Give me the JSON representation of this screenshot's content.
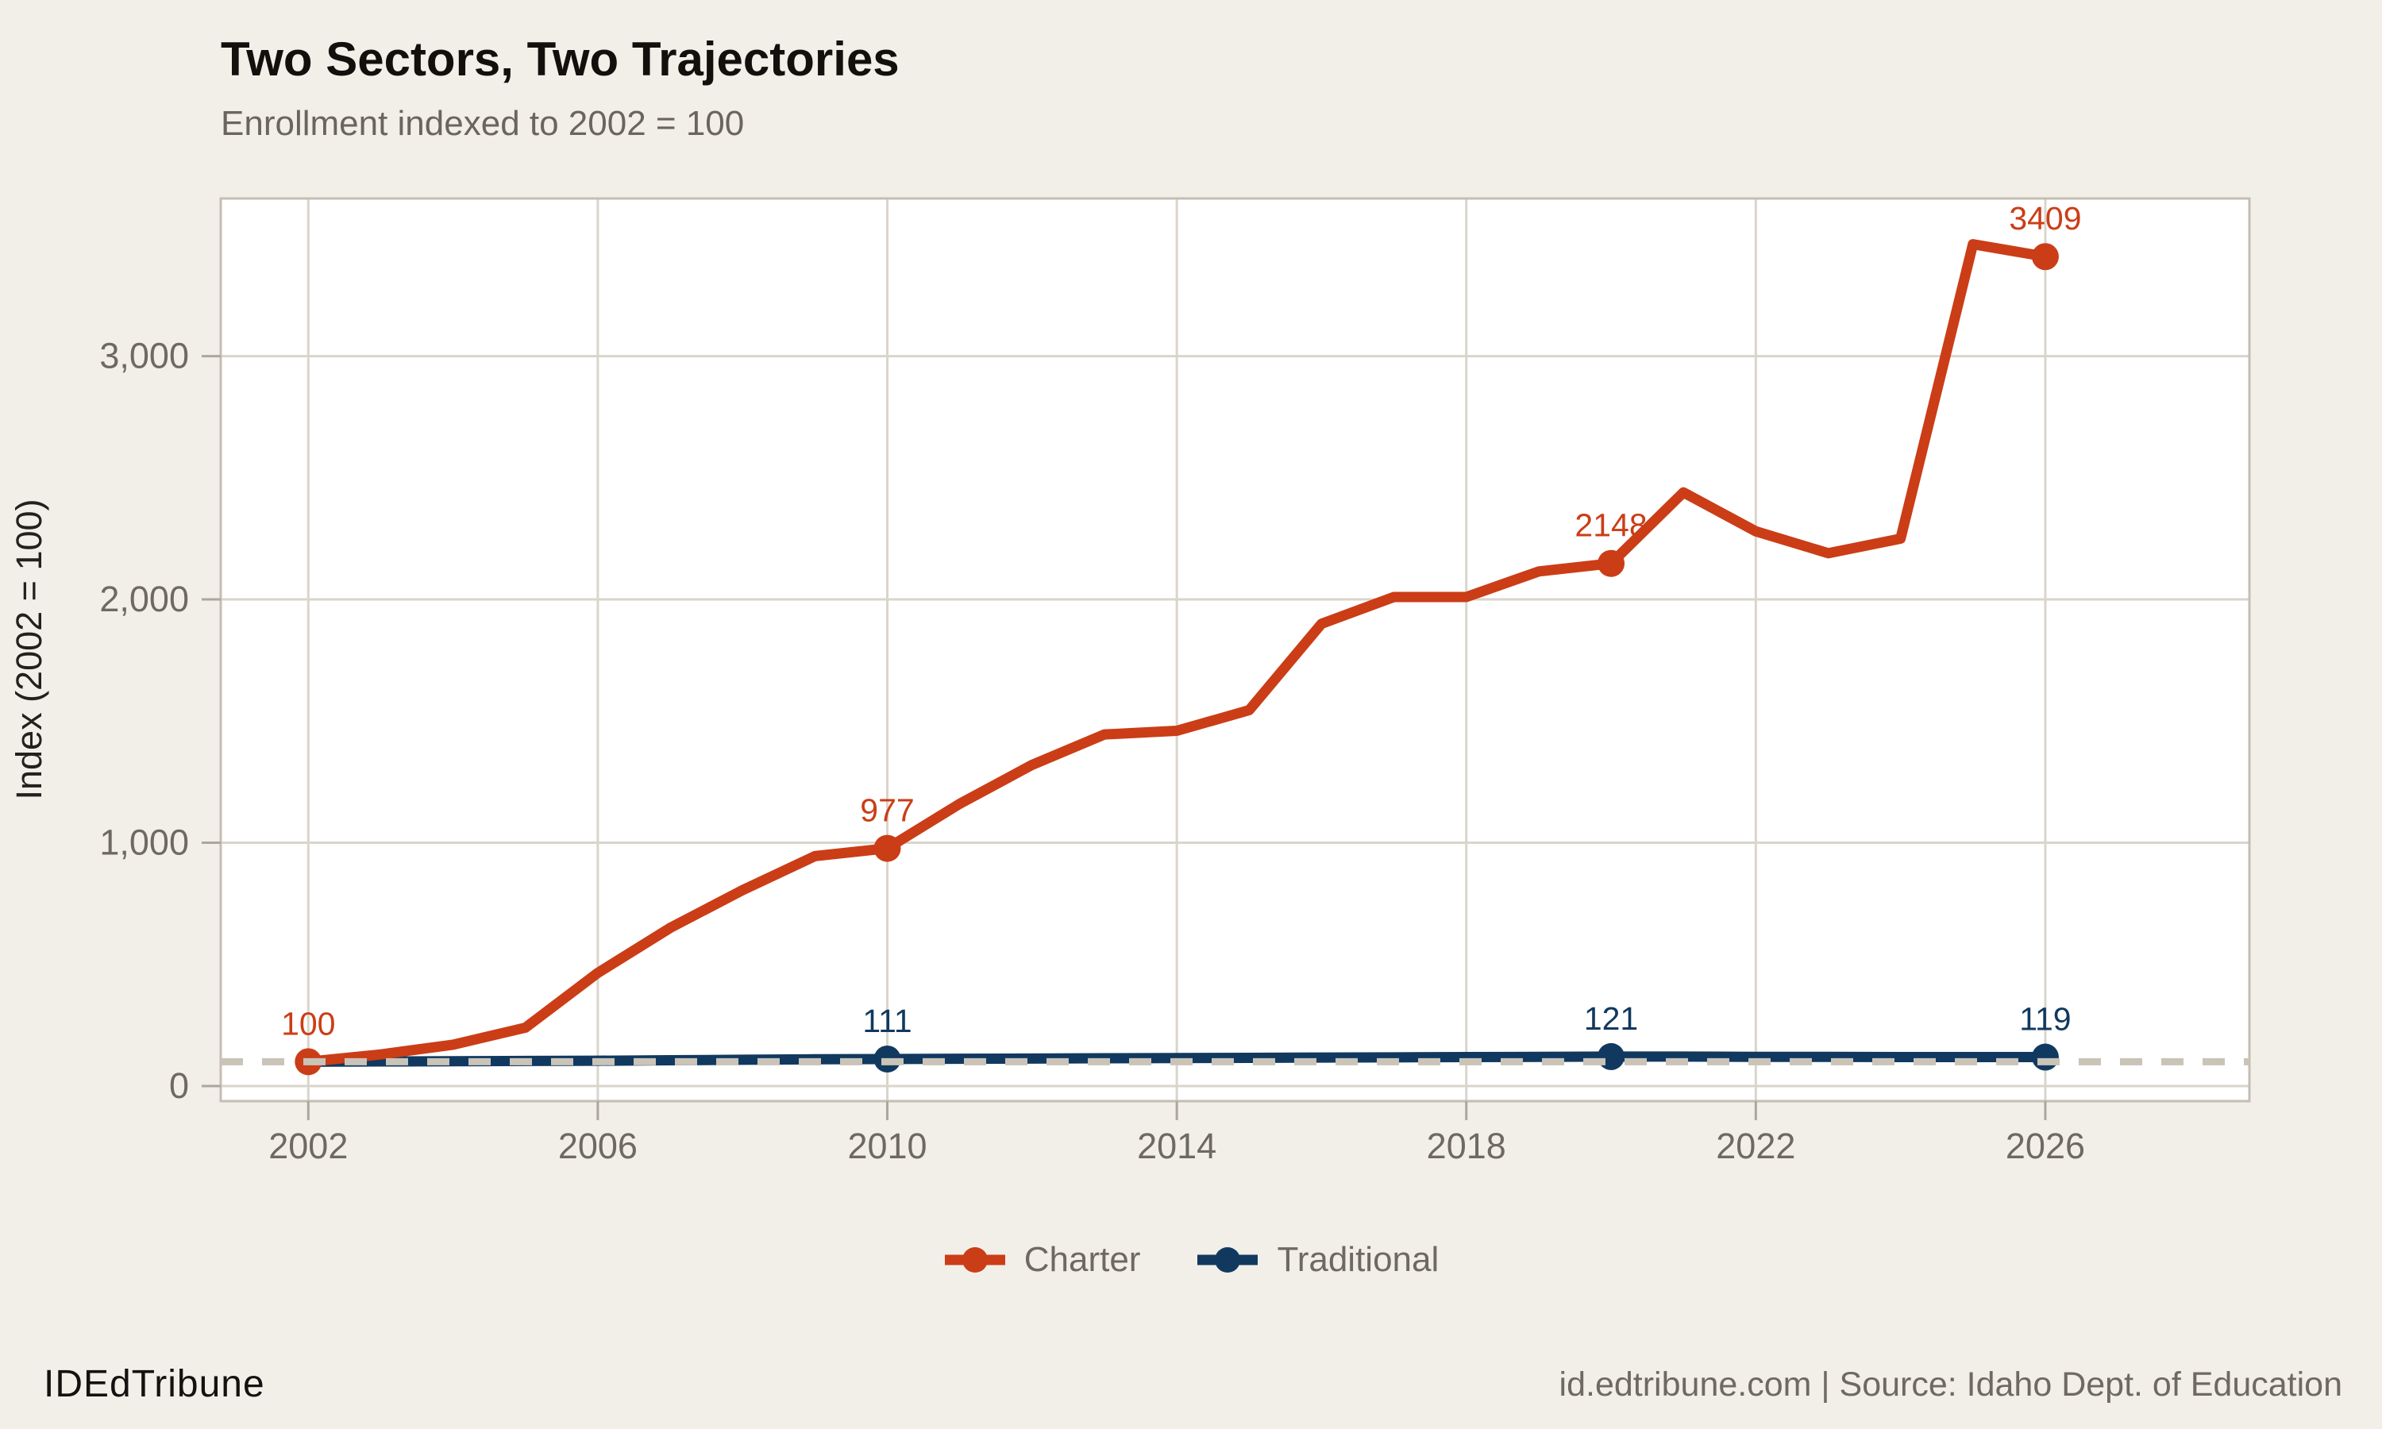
{
  "header": {
    "title": "Two Sectors, Two Trajectories",
    "subtitle": "Enrollment indexed to 2002 = 100"
  },
  "footer": {
    "brand": "IDEdTribune",
    "source": "id.edtribune.com | Source: Idaho Dept. of Education"
  },
  "colors": {
    "background": "#F2EFE9",
    "panel": "#FFFFFF",
    "gridline": "#DAD5CB",
    "panel_border": "#C4BEB3",
    "tick": "#ACA79D",
    "tick_label": "#6E6961",
    "reference_line": "#C9C3B8",
    "charter": "#CB3D16",
    "traditional": "#11395F"
  },
  "legend": {
    "items": [
      {
        "label": "Charter",
        "color": "#CB3D16"
      },
      {
        "label": "Traditional",
        "color": "#11395F"
      }
    ]
  },
  "chart_data": {
    "type": "line",
    "title": "Two Sectors, Two Trajectories",
    "subtitle": "Enrollment indexed to 2002 = 100",
    "xlabel": "",
    "ylabel": "Index (2002 = 100)",
    "x": [
      2002,
      2003,
      2004,
      2005,
      2006,
      2007,
      2008,
      2009,
      2010,
      2011,
      2012,
      2013,
      2014,
      2015,
      2016,
      2017,
      2018,
      2019,
      2020,
      2021,
      2022,
      2023,
      2024,
      2025,
      2026
    ],
    "series": [
      {
        "name": "Charter",
        "color": "#CB3D16",
        "values": [
          100,
          130,
          170,
          240,
          465,
          650,
          805,
          945,
          977,
          1160,
          1320,
          1445,
          1460,
          1545,
          1900,
          2010,
          2010,
          2115,
          2148,
          2440,
          2280,
          2190,
          2250,
          3460,
          3409
        ],
        "labeled_points": [
          {
            "x": 2002,
            "value": 100,
            "label": "100"
          },
          {
            "x": 2010,
            "value": 977,
            "label": "977"
          },
          {
            "x": 2020,
            "value": 2148,
            "label": "2148"
          },
          {
            "x": 2026,
            "value": 3409,
            "label": "3409"
          }
        ]
      },
      {
        "name": "Traditional",
        "color": "#11395F",
        "values": [
          100,
          101,
          102,
          103,
          104,
          106,
          108,
          110,
          111,
          112,
          113,
          114,
          115,
          116,
          117,
          118,
          119,
          120,
          121,
          121,
          120,
          120,
          119,
          119,
          119
        ],
        "labeled_points": [
          {
            "x": 2010,
            "value": 111,
            "label": "111"
          },
          {
            "x": 2020,
            "value": 121,
            "label": "121"
          },
          {
            "x": 2026,
            "value": 119,
            "label": "119"
          }
        ]
      }
    ],
    "x_ticks": [
      2002,
      2006,
      2010,
      2014,
      2018,
      2022,
      2026
    ],
    "x_tick_labels": [
      "2002",
      "2006",
      "2010",
      "2014",
      "2018",
      "2022",
      "2026"
    ],
    "y_ticks": [
      0,
      1000,
      2000,
      3000
    ],
    "y_tick_labels": [
      "0",
      "1,000",
      "2,000",
      "3,000"
    ],
    "xlim": [
      2000.79,
      2028.82
    ],
    "ylim": [
      -62,
      3648
    ],
    "reference_line": {
      "y": 100,
      "style": "dashed"
    },
    "grid": true,
    "legend_position": "bottom"
  }
}
